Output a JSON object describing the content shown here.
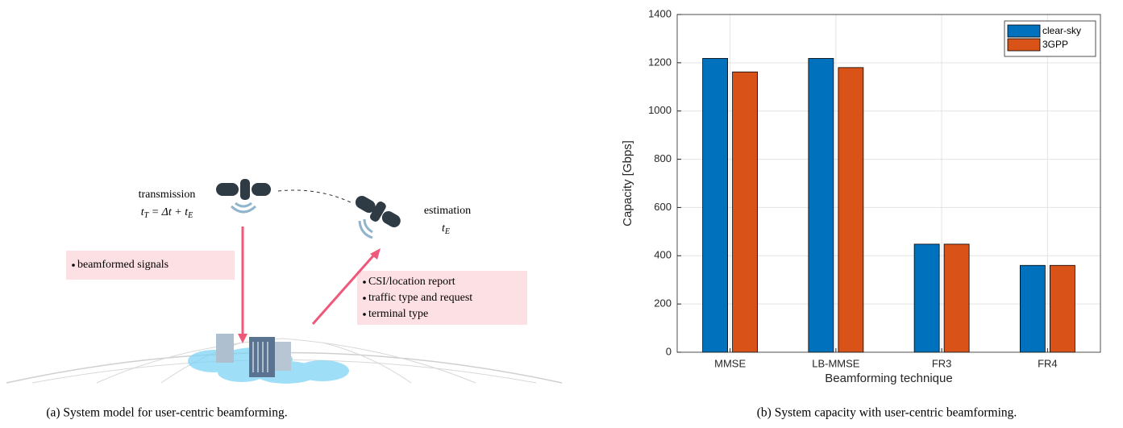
{
  "diagram": {
    "transmission_label": "transmission",
    "transmission_formula": [
      "t",
      "T",
      " = Δt + ",
      "t",
      "E"
    ],
    "estimation_label": "estimation",
    "estimation_formula": [
      "t",
      "E"
    ],
    "downlink_items": [
      "beamformed signals"
    ],
    "uplink_items": [
      "CSI/location report",
      "traffic type and request",
      "terminal type"
    ]
  },
  "captions": [
    "(a) System model for user-centric beamforming.",
    "(b) System capacity with user-centric beamforming."
  ],
  "chart_data": {
    "type": "bar",
    "categories": [
      "MMSE",
      "LB-MMSE",
      "FR3",
      "FR4"
    ],
    "series": [
      {
        "name": "clear-sky",
        "color": "#0072bd",
        "values": [
          1218,
          1218,
          448,
          360
        ]
      },
      {
        "name": "3GPP",
        "color": "#d95319",
        "values": [
          1162,
          1180,
          448,
          360
        ]
      }
    ],
    "xlabel": "Beamforming technique",
    "ylabel": "Capacity [Gbps]",
    "ylim": [
      0,
      1400
    ],
    "yticks": [
      0,
      200,
      400,
      600,
      800,
      1000,
      1200,
      1400
    ],
    "grid": true,
    "legend": "top-right"
  }
}
